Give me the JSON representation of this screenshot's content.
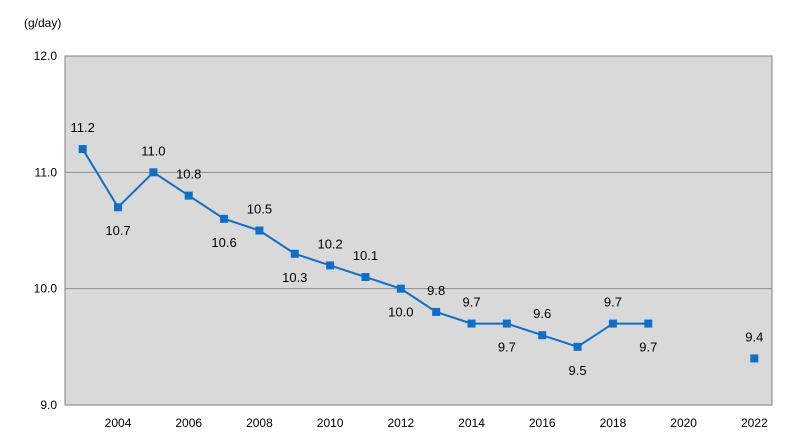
{
  "chart_data": {
    "type": "line",
    "ylabel": "(g/day)",
    "ylim": [
      9.0,
      12.0
    ],
    "yticks": [
      "9.0",
      "10.0",
      "11.0",
      "12.0"
    ],
    "xlim": [
      2002.5,
      2022.5
    ],
    "xticks": [
      "2004",
      "2006",
      "2008",
      "2010",
      "2012",
      "2014",
      "2016",
      "2018",
      "2020",
      "2022"
    ],
    "grid": true,
    "plot_background": "#d9d9d9",
    "series_color": "#0f6fc6",
    "series": [
      {
        "x": [
          2003,
          2004,
          2005,
          2006,
          2007,
          2008,
          2009,
          2010,
          2011,
          2012,
          2013,
          2014,
          2015,
          2016,
          2017,
          2018,
          2019
        ],
        "values": [
          11.2,
          10.7,
          11.0,
          10.8,
          10.6,
          10.5,
          10.3,
          10.2,
          10.1,
          10.0,
          9.8,
          9.7,
          9.7,
          9.6,
          9.5,
          9.7,
          9.7
        ],
        "labels": [
          "11.2",
          "10.7",
          "11.0",
          "10.8",
          "10.6",
          "10.5",
          "10.3",
          "10.2",
          "10.1",
          "10.0",
          "9.8",
          "9.7",
          "9.7",
          "9.6",
          "9.5",
          "9.7",
          "9.7"
        ],
        "connected": true
      },
      {
        "x": [
          2022
        ],
        "values": [
          9.4
        ],
        "labels": [
          "9.4"
        ],
        "connected": false
      }
    ]
  }
}
